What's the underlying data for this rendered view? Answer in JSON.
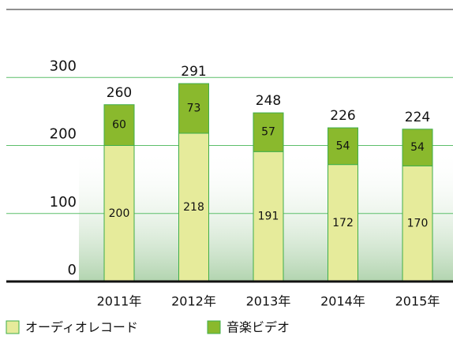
{
  "chart_data": {
    "type": "stacked_bar",
    "categories": [
      "2011年",
      "2012年",
      "2013年",
      "2014年",
      "2015年"
    ],
    "series": [
      {
        "name": "オーディオレコード",
        "color": "#e6eb9b",
        "values": [
          200,
          218,
          191,
          172,
          170
        ]
      },
      {
        "name": "音楽ビデオ",
        "color": "#8ab92d",
        "values": [
          60,
          73,
          57,
          54,
          54
        ]
      }
    ],
    "totals": [
      260,
      291,
      248,
      226,
      224
    ],
    "ylim": [
      0,
      400
    ],
    "yticks": [
      0,
      100,
      200,
      300
    ],
    "grid": true
  }
}
